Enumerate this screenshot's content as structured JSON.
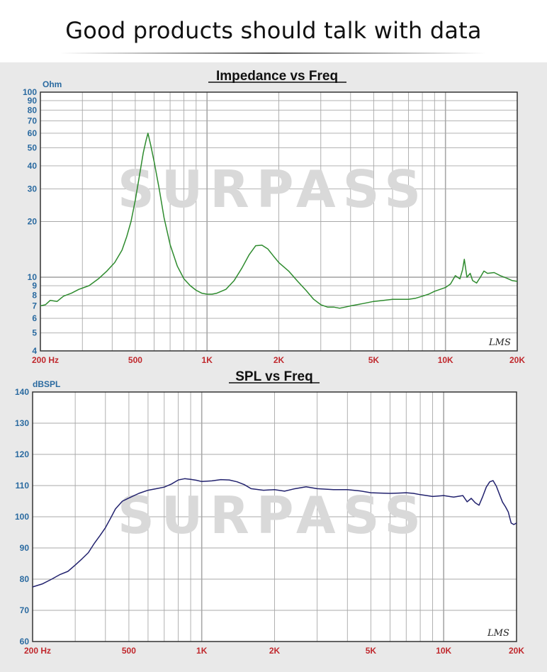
{
  "headline": "Good products should talk with data",
  "watermark": "SURPASS",
  "colors": {
    "impedance_line": "#2e8b2e",
    "spl_line": "#22226e",
    "grid": "#a8a8a8",
    "y_tick_text": "#2a6aa0",
    "x_tick_text": "#c0282d"
  },
  "chart_data": [
    {
      "type": "line",
      "title": "Impedance vs Freq",
      "ylabel": "Ohm",
      "xlabel": "",
      "x_scale": "log",
      "y_scale": "log",
      "xlim": [
        200,
        20000
      ],
      "ylim": [
        4,
        100
      ],
      "grid": true,
      "x_ticks": [
        {
          "value": 200,
          "label": "200  Hz"
        },
        {
          "value": 500,
          "label": "500"
        },
        {
          "value": 1000,
          "label": "1K"
        },
        {
          "value": 2000,
          "label": "2K"
        },
        {
          "value": 5000,
          "label": "5K"
        },
        {
          "value": 10000,
          "label": "10K"
        },
        {
          "value": 20000,
          "label": "20K"
        }
      ],
      "y_ticks": [
        {
          "value": 100,
          "label": "100"
        },
        {
          "value": 90,
          "label": "90"
        },
        {
          "value": 80,
          "label": "80"
        },
        {
          "value": 70,
          "label": "70"
        },
        {
          "value": 60,
          "label": "60"
        },
        {
          "value": 50,
          "label": "50"
        },
        {
          "value": 40,
          "label": "40"
        },
        {
          "value": 30,
          "label": "30"
        },
        {
          "value": 20,
          "label": "20"
        },
        {
          "value": 10,
          "label": "10"
        },
        {
          "value": 9,
          "label": "9"
        },
        {
          "value": 8,
          "label": "8"
        },
        {
          "value": 7,
          "label": "7"
        },
        {
          "value": 6,
          "label": "6"
        },
        {
          "value": 5,
          "label": "5"
        },
        {
          "value": 4,
          "label": "4"
        }
      ],
      "corner_mark": "LMS",
      "series": [
        {
          "x": [
            200,
            210,
            220,
            235,
            250,
            270,
            290,
            320,
            350,
            380,
            410,
            440,
            460,
            480,
            500,
            520,
            540,
            555,
            565,
            580,
            600,
            630,
            660,
            700,
            750,
            800,
            850,
            900,
            950,
            1000,
            1050,
            1100,
            1200,
            1300,
            1400,
            1500,
            1600,
            1700,
            1800,
            1900,
            2000,
            2200,
            2400,
            2600,
            2800,
            3000,
            3200,
            3400,
            3600,
            3800,
            4000,
            4500,
            5000,
            5500,
            6000,
            6500,
            7000,
            7500,
            8000,
            8500,
            9000,
            9500,
            10000,
            10500,
            11000,
            11500,
            11800,
            12000,
            12300,
            12700,
            13000,
            13500,
            14000,
            14500,
            15000,
            16000,
            17000,
            18000,
            19000,
            20000
          ],
          "y": [
            7.0,
            7.1,
            7.5,
            7.4,
            7.9,
            8.2,
            8.6,
            9.0,
            9.8,
            10.8,
            12.0,
            14.0,
            16.5,
            20.0,
            26.0,
            35.0,
            47.0,
            55.0,
            60.0,
            52.0,
            42.0,
            30.0,
            21.0,
            15.0,
            11.5,
            9.8,
            9.0,
            8.5,
            8.2,
            8.1,
            8.1,
            8.2,
            8.6,
            9.6,
            11.2,
            13.2,
            14.8,
            14.9,
            14.2,
            13.0,
            12.0,
            10.8,
            9.5,
            8.5,
            7.6,
            7.1,
            6.9,
            6.9,
            6.8,
            6.9,
            7.0,
            7.2,
            7.4,
            7.5,
            7.6,
            7.6,
            7.6,
            7.7,
            7.9,
            8.1,
            8.4,
            8.6,
            8.8,
            9.2,
            10.2,
            9.8,
            11.0,
            12.5,
            10.0,
            10.5,
            9.6,
            9.3,
            10.0,
            10.8,
            10.5,
            10.6,
            10.2,
            9.9,
            9.6,
            9.5
          ]
        }
      ]
    },
    {
      "type": "line",
      "title": "SPL vs Freq",
      "ylabel": "dBSPL",
      "xlabel": "",
      "x_scale": "log",
      "y_scale": "linear",
      "xlim": [
        200,
        20000
      ],
      "ylim": [
        60,
        140
      ],
      "grid": true,
      "x_ticks": [
        {
          "value": 200,
          "label": "200  Hz"
        },
        {
          "value": 500,
          "label": "500"
        },
        {
          "value": 1000,
          "label": "1K"
        },
        {
          "value": 2000,
          "label": "2K"
        },
        {
          "value": 5000,
          "label": "5K"
        },
        {
          "value": 10000,
          "label": "10K"
        },
        {
          "value": 20000,
          "label": "20K"
        }
      ],
      "y_ticks": [
        {
          "value": 140,
          "label": "140"
        },
        {
          "value": 130,
          "label": "130"
        },
        {
          "value": 120,
          "label": "120"
        },
        {
          "value": 110,
          "label": "110"
        },
        {
          "value": 100,
          "label": "100"
        },
        {
          "value": 90,
          "label": "90"
        },
        {
          "value": 80,
          "label": "80"
        },
        {
          "value": 70,
          "label": "70"
        },
        {
          "value": 60,
          "label": "60"
        }
      ],
      "corner_mark": "LMS",
      "series": [
        {
          "x": [
            200,
            220,
            240,
            260,
            280,
            300,
            320,
            340,
            360,
            380,
            400,
            420,
            440,
            470,
            500,
            550,
            600,
            650,
            700,
            750,
            800,
            850,
            900,
            950,
            1000,
            1100,
            1200,
            1300,
            1400,
            1500,
            1600,
            1800,
            2000,
            2200,
            2400,
            2700,
            3000,
            3500,
            4000,
            4500,
            5000,
            5500,
            6000,
            6500,
            7000,
            7500,
            8000,
            9000,
            10000,
            11000,
            12000,
            12500,
            13000,
            13500,
            14000,
            14500,
            15000,
            15500,
            16000,
            16500,
            17000,
            17500,
            18000,
            18500,
            19000,
            19500,
            20000
          ],
          "y": [
            77.5,
            78.5,
            80.0,
            81.5,
            82.5,
            84.5,
            86.5,
            88.5,
            91.5,
            94.0,
            96.5,
            99.5,
            102.5,
            105.0,
            106.0,
            107.5,
            108.5,
            109.0,
            109.5,
            110.5,
            111.8,
            112.2,
            112.0,
            111.7,
            111.3,
            111.5,
            111.9,
            111.8,
            111.2,
            110.3,
            109.0,
            108.5,
            108.7,
            108.2,
            108.9,
            109.6,
            109.0,
            108.7,
            108.7,
            108.3,
            107.7,
            107.6,
            107.5,
            107.6,
            107.7,
            107.5,
            107.1,
            106.5,
            106.8,
            106.3,
            106.8,
            104.8,
            105.9,
            104.5,
            103.7,
            106.5,
            109.5,
            111.2,
            111.6,
            109.8,
            107.2,
            104.7,
            103.2,
            101.5,
            98.0,
            97.5,
            98.0
          ]
        }
      ]
    }
  ]
}
